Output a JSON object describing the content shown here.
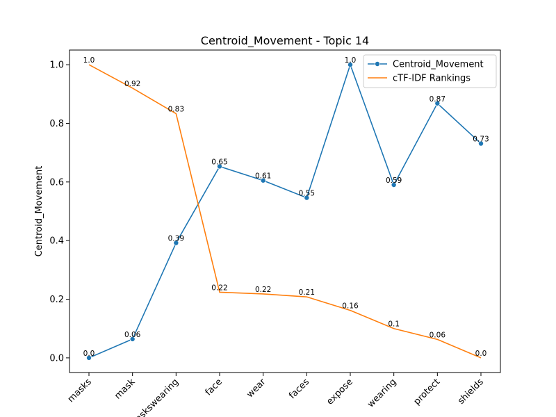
{
  "chart_data": {
    "type": "line",
    "title": "Centroid_Movement - Topic 14",
    "xlabel": "",
    "ylabel": "Centroid_Movement",
    "categories": [
      "masks",
      "mask",
      "maskswearing",
      "face",
      "wear",
      "faces",
      "expose",
      "wearing",
      "protect",
      "shields"
    ],
    "ylim": [
      -0.05,
      1.05
    ],
    "yticks": [
      "0.0",
      "0.2",
      "0.4",
      "0.6",
      "0.8",
      "1.0"
    ],
    "grid": false,
    "legend_position": "top-right",
    "series": [
      {
        "name": "Centroid_Movement",
        "color": "#1f77b4",
        "marker": "circle",
        "values": [
          0.0,
          0.064,
          0.392,
          0.653,
          0.605,
          0.546,
          1.0,
          0.59,
          0.868,
          0.731
        ],
        "labels": [
          "0.0",
          "0.06",
          "0.39",
          "0.65",
          "0.61",
          "0.55",
          "1.0",
          "0.59",
          "0.87",
          "0.73"
        ]
      },
      {
        "name": "cTF-IDF Rankings",
        "color": "#ff7f0e",
        "marker": "none",
        "values": [
          1.0,
          0.92,
          0.833,
          0.224,
          0.218,
          0.208,
          0.162,
          0.1,
          0.063,
          0.0
        ],
        "labels": [
          "1.0",
          "0.92",
          "0.83",
          "0.22",
          "0.22",
          "0.21",
          "0.16",
          "0.1",
          "0.06",
          "0.0"
        ]
      }
    ]
  }
}
